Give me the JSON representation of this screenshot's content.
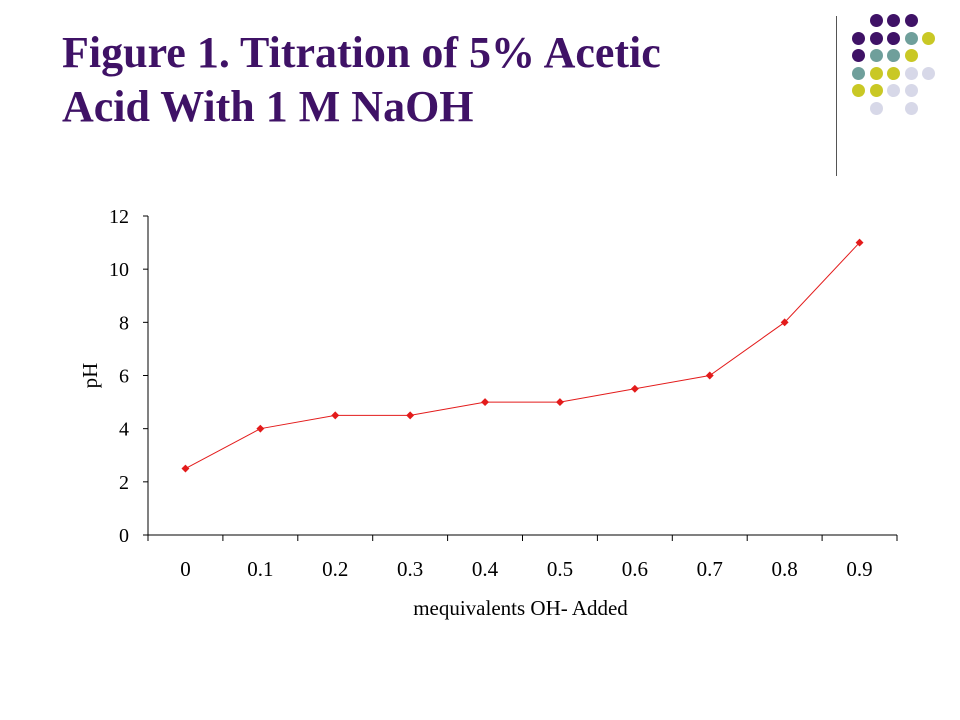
{
  "slide": {
    "title_line1": "Figure 1.  Titration of 5% Acetic",
    "title_line2": "Acid With 1 M NaOH",
    "title_color": "#3f1266"
  },
  "decoration": {
    "palette": [
      "#3f1266",
      "#6f9f9b",
      "#c9c825",
      "#d7d8e8"
    ],
    "dot_grid": [
      [
        null,
        0,
        0,
        0,
        null
      ],
      [
        0,
        0,
        0,
        1,
        2
      ],
      [
        0,
        1,
        1,
        2,
        null
      ],
      [
        1,
        2,
        2,
        3,
        3
      ],
      [
        2,
        2,
        3,
        3,
        null
      ],
      [
        null,
        3,
        null,
        3,
        null
      ]
    ]
  },
  "chart_data": {
    "type": "line",
    "title": "",
    "xlabel": "mequivalents OH- Added",
    "ylabel": "pH",
    "categories": [
      "0",
      "0.1",
      "0.2",
      "0.3",
      "0.4",
      "0.5",
      "0.6",
      "0.7",
      "0.8",
      "0.9"
    ],
    "series": [
      {
        "values": [
          2.5,
          4,
          4.5,
          4.5,
          5,
          5,
          5.5,
          6,
          8,
          11
        ],
        "color": "#e31b1b"
      }
    ],
    "ylim": [
      0,
      12
    ],
    "yticks": [
      0,
      2,
      4,
      6,
      8,
      10,
      12
    ],
    "grid": false,
    "legend": "none"
  }
}
